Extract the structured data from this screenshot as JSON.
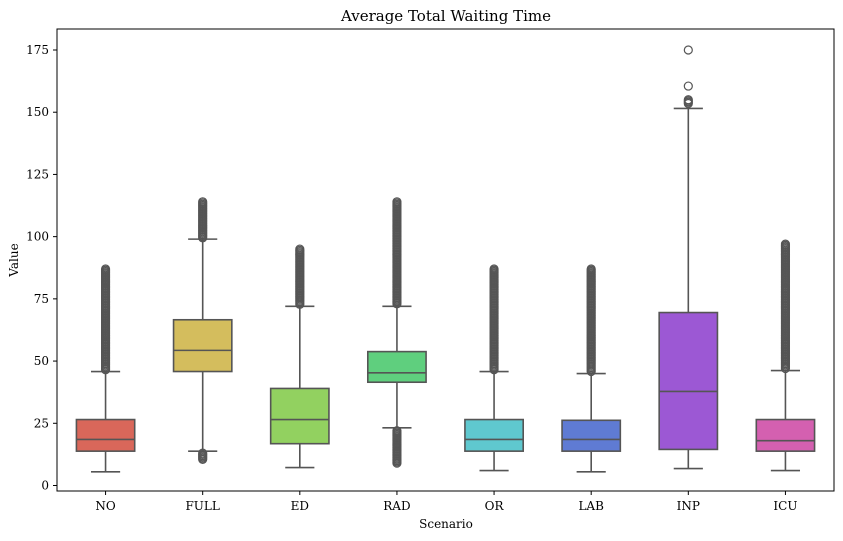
{
  "chart_data": {
    "type": "box",
    "title": "Average Total Waiting Time",
    "xlabel": "Scenario",
    "ylabel": "Value",
    "ylim": [
      -2,
      185
    ],
    "yticks": [
      0,
      25,
      50,
      75,
      100,
      125,
      150,
      175
    ],
    "categories": [
      "NO",
      "FULL",
      "ED",
      "RAD",
      "OR",
      "LAB",
      "INP",
      "ICU"
    ],
    "colors": [
      "#d9675a",
      "#d4bd5d",
      "#92d160",
      "#5fcf7e",
      "#5fc8cf",
      "#5f7bd3",
      "#9c58d4",
      "#d460b0"
    ],
    "edge_color": "#555555",
    "boxes": [
      {
        "name": "NO",
        "whislo": 5.5,
        "q1": 13.8,
        "med": 18.5,
        "q3": 26.5,
        "whishi": 45.8,
        "fliers": [
          46.5,
          50,
          54,
          58,
          62,
          66,
          70,
          74,
          78,
          82,
          85,
          87
        ]
      },
      {
        "name": "FULL",
        "whislo": 13.8,
        "q1": 45.8,
        "med": 54.3,
        "q3": 66.6,
        "whishi": 99.0,
        "fliers": [
          10.5,
          11.5,
          12.5,
          13.0,
          99.5,
          101,
          103,
          105,
          107,
          109,
          111,
          113,
          114
        ]
      },
      {
        "name": "ED",
        "whislo": 7.2,
        "q1": 16.8,
        "med": 26.5,
        "q3": 39.0,
        "whishi": 72.0,
        "fliers": [
          72.8,
          75,
          77,
          79,
          81,
          83,
          85,
          87,
          89,
          91,
          93,
          95
        ]
      },
      {
        "name": "RAD",
        "whislo": 23.2,
        "q1": 41.5,
        "med": 45.3,
        "q3": 53.8,
        "whishi": 72.0,
        "fliers": [
          9,
          10,
          11.5,
          13,
          14.5,
          16,
          17.5,
          19,
          20.5,
          22,
          73,
          76,
          79,
          82,
          85,
          88,
          91,
          94,
          97,
          100,
          103,
          106,
          109,
          112,
          114
        ]
      },
      {
        "name": "OR",
        "whislo": 6.0,
        "q1": 13.8,
        "med": 18.5,
        "q3": 26.5,
        "whishi": 45.8,
        "fliers": [
          46.5,
          50,
          54,
          58,
          62,
          66,
          70,
          74,
          78,
          82,
          85,
          87
        ]
      },
      {
        "name": "LAB",
        "whislo": 5.5,
        "q1": 13.8,
        "med": 18.5,
        "q3": 26.2,
        "whishi": 45.0,
        "fliers": [
          45.8,
          49,
          53,
          57,
          61,
          65,
          69,
          73,
          77,
          81,
          84,
          87
        ]
      },
      {
        "name": "INP",
        "whislo": 6.8,
        "q1": 14.5,
        "med": 37.8,
        "q3": 69.5,
        "whishi": 151.5,
        "fliers": [
          153.5,
          155,
          160.5,
          175
        ]
      },
      {
        "name": "ICU",
        "whislo": 6.0,
        "q1": 13.8,
        "med": 18.0,
        "q3": 26.5,
        "whishi": 46.2,
        "fliers": [
          47,
          51,
          55,
          59,
          63,
          67,
          71,
          75,
          79,
          83,
          87,
          90,
          93,
          95,
          97
        ]
      }
    ]
  }
}
